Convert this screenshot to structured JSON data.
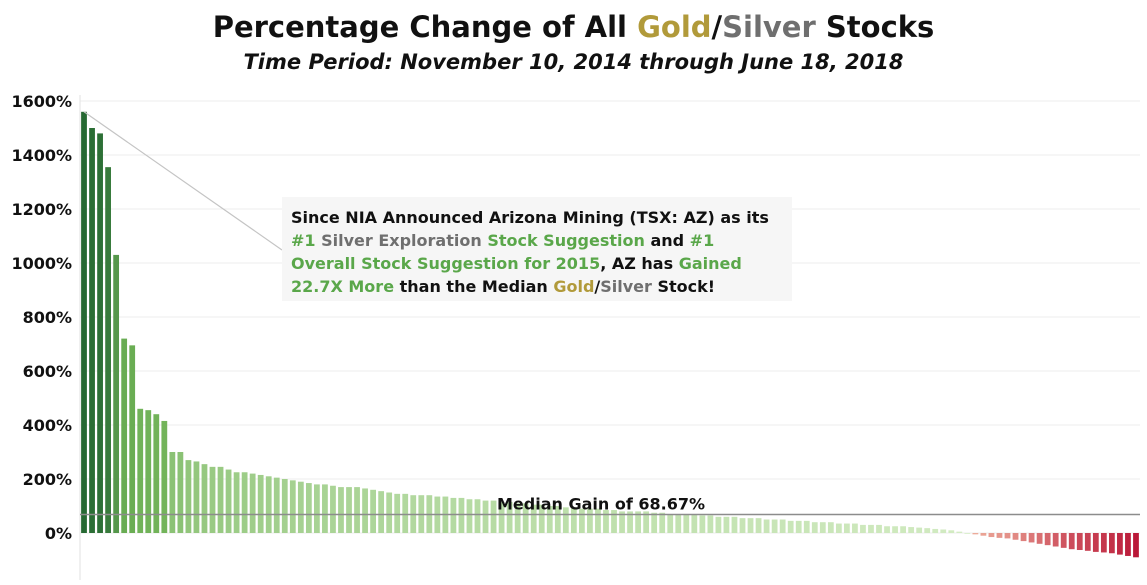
{
  "title": {
    "prefix": "Percentage Change of All ",
    "gold": "Gold",
    "slash": "/",
    "silver": "Silver",
    "suffix": " Stocks"
  },
  "subtitle": "Time Period: November 10, 2014 through June 18, 2018",
  "colors": {
    "gold": "#b19a3a",
    "silver": "#6f6f6f",
    "highlight_green": "#5aa74a",
    "median_line": "#8c8c8c"
  },
  "callout": {
    "parts": [
      {
        "text": "Since NIA Announced Arizona Mining (TSX: AZ) as its ",
        "style": "plain"
      },
      {
        "text": "#1",
        "style": "green"
      },
      {
        "text": " Silver Exploration ",
        "style": "silver"
      },
      {
        "text": "Stock Suggestion",
        "style": "green"
      },
      {
        "text": " and ",
        "style": "plain"
      },
      {
        "text": "#1 Overall Stock Suggestion for 2015",
        "style": "green"
      },
      {
        "text": ", AZ has ",
        "style": "plain"
      },
      {
        "text": "Gained 22.7X More",
        "style": "green"
      },
      {
        "text": " than the Median ",
        "style": "plain"
      },
      {
        "text": "Gold",
        "style": "gold"
      },
      {
        "text": "/",
        "style": "plain"
      },
      {
        "text": "Silver",
        "style": "silver"
      },
      {
        "text": " Stock!",
        "style": "plain"
      }
    ]
  },
  "chart_data": {
    "type": "bar",
    "ylim": [
      -100,
      1700
    ],
    "yticks": [
      0,
      200,
      400,
      600,
      800,
      1000,
      1200,
      1400,
      1600
    ],
    "ytick_labels": [
      "0%",
      "200%",
      "400%",
      "600%",
      "800%",
      "1000%",
      "1200%",
      "1400%",
      "1600%"
    ],
    "grid": true,
    "median": {
      "value": 68.67,
      "label": "Median Gain of 68.67%"
    },
    "values": [
      1560,
      1500,
      1480,
      1355,
      1030,
      720,
      695,
      460,
      455,
      440,
      415,
      300,
      300,
      270,
      265,
      255,
      245,
      245,
      235,
      225,
      225,
      220,
      215,
      210,
      205,
      200,
      195,
      190,
      185,
      180,
      180,
      175,
      170,
      170,
      170,
      165,
      160,
      155,
      150,
      145,
      145,
      140,
      140,
      140,
      135,
      135,
      130,
      130,
      125,
      125,
      120,
      120,
      115,
      115,
      110,
      110,
      105,
      105,
      100,
      100,
      95,
      95,
      90,
      90,
      90,
      85,
      85,
      80,
      80,
      80,
      80,
      75,
      75,
      70,
      70,
      70,
      68.67,
      65,
      65,
      60,
      60,
      60,
      55,
      55,
      55,
      50,
      50,
      50,
      45,
      45,
      45,
      40,
      40,
      40,
      35,
      35,
      35,
      30,
      30,
      30,
      25,
      25,
      25,
      22,
      20,
      18,
      15,
      13,
      10,
      5,
      0,
      -5,
      -10,
      -15,
      -18,
      -20,
      -25,
      -30,
      -35,
      -40,
      -45,
      -50,
      -55,
      -60,
      -63,
      -66,
      -70,
      -72,
      -75,
      -80,
      -85,
      -90
    ]
  }
}
